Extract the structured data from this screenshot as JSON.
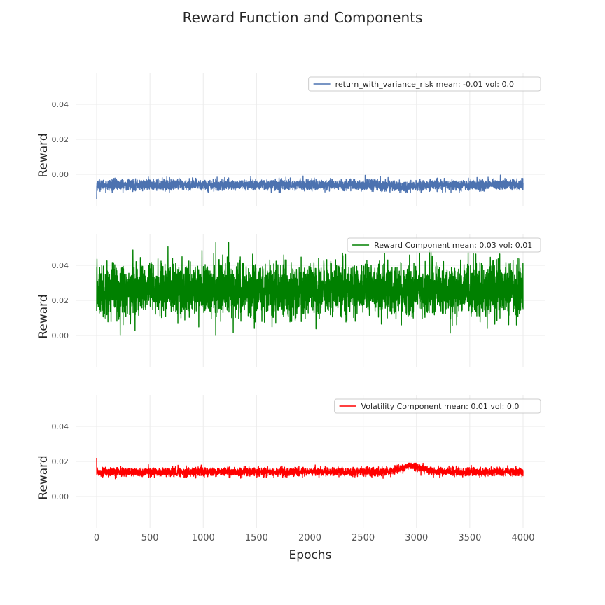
{
  "figure": {
    "title": "Reward Function and Components",
    "xlabel": "Epochs"
  },
  "chart_data": [
    {
      "type": "line",
      "ylabel": "Reward",
      "xlim": [
        0,
        4000
      ],
      "ylim": [
        -0.018,
        0.058
      ],
      "yticks": [
        "0.00",
        "0.02",
        "0.04"
      ],
      "ytick_values": [
        0.0,
        0.02,
        0.04
      ],
      "grid": true,
      "legend_position": "top-right",
      "series": [
        {
          "name": "return_with_variance_risk mean: -0.01 vol: 0.0",
          "color": "#4c72b0",
          "mean": -0.006,
          "vol": 0.0015,
          "x_range": [
            0,
            4000
          ],
          "n_points": 4000,
          "start_spike": -0.014,
          "bump": {
            "center": 2900,
            "width": 150,
            "amplitude": -0.001
          },
          "clip": [
            -0.0105,
            -0.0005
          ]
        }
      ]
    },
    {
      "type": "line",
      "ylabel": "Reward",
      "xlim": [
        0,
        4000
      ],
      "ylim": [
        -0.018,
        0.058
      ],
      "yticks": [
        "0.00",
        "0.02",
        "0.04"
      ],
      "ytick_values": [
        0.0,
        0.02,
        0.04
      ],
      "grid": true,
      "legend_position": "top-right",
      "series": [
        {
          "name": "Reward Component mean: 0.03 vol: 0.01",
          "color": "#008000",
          "mean": 0.026,
          "vol": 0.0075,
          "x_range": [
            0,
            4000
          ],
          "n_points": 4000,
          "start_spike": 0.014,
          "bump": {
            "center": 2900,
            "width": 150,
            "amplitude": 0.0
          },
          "clip": [
            0.0,
            0.053
          ]
        }
      ]
    },
    {
      "type": "line",
      "ylabel": "Reward",
      "xlim": [
        0,
        4000
      ],
      "ylim": [
        -0.018,
        0.058
      ],
      "yticks": [
        "0.00",
        "0.02",
        "0.04"
      ],
      "ytick_values": [
        0.0,
        0.02,
        0.04
      ],
      "grid": true,
      "legend_position": "top-right",
      "series": [
        {
          "name": "Volatility Component mean: 0.01 vol: 0.0",
          "color": "#ff0000",
          "mean": 0.014,
          "vol": 0.0012,
          "x_range": [
            0,
            4000
          ],
          "n_points": 4000,
          "start_spike": 0.022,
          "bump": {
            "center": 2950,
            "width": 130,
            "amplitude": 0.0035
          },
          "clip": [
            0.0095,
            0.019
          ]
        }
      ]
    }
  ],
  "x_axis": {
    "ticks": [
      0,
      500,
      1000,
      1500,
      2000,
      2500,
      3000,
      3500,
      4000
    ],
    "tick_labels": [
      "0",
      "500",
      "1000",
      "1500",
      "2000",
      "2500",
      "3000",
      "3500",
      "4000"
    ]
  }
}
